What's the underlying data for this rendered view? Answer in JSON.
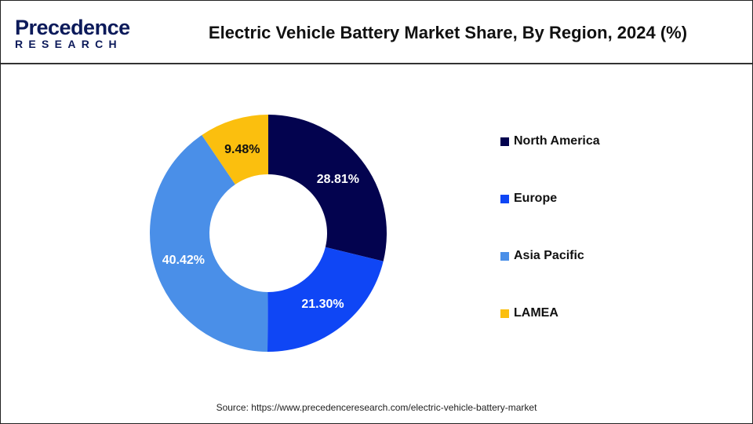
{
  "logo": {
    "top": "Precedence",
    "bottom": "RESEARCH"
  },
  "source": "Source: https://www.precedenceresearch.com/electric-vehicle-battery-market",
  "chart_data": {
    "type": "pie",
    "donut": true,
    "title": "Electric Vehicle Battery Market Share, By Region, 2024 (%)",
    "categories": [
      "North America",
      "Europe",
      "Asia Pacific",
      "LAMEA"
    ],
    "values": [
      28.81,
      21.3,
      40.42,
      9.48
    ],
    "labels": [
      "28.81%",
      "21.30%",
      "40.42%",
      "9.48%"
    ],
    "colors": [
      "#03034f",
      "#0f46f5",
      "#4a8fe8",
      "#fbbf0e"
    ],
    "label_colors": [
      "#ffffff",
      "#ffffff",
      "#ffffff",
      "#111111"
    ],
    "legend_position": "right"
  }
}
